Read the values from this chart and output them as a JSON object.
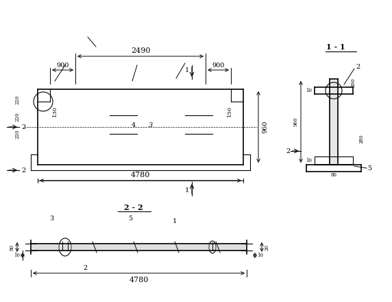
{
  "bg_color": "#ffffff",
  "line_color": "#000000",
  "title_11": "1 - 1",
  "title_22": "2 - 2",
  "dim_color": "#000000",
  "font_size_small": 7,
  "font_size_mid": 8,
  "font_size_large": 9
}
